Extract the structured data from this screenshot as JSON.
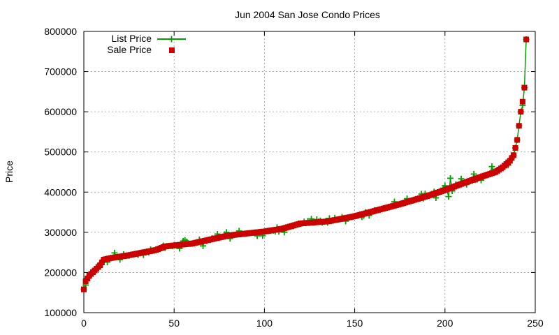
{
  "chart_data": {
    "type": "scatter",
    "title": "Jun 2004 San Jose Condo Prices",
    "xlabel": "",
    "ylabel": "Price",
    "xlim": [
      0,
      250
    ],
    "ylim": [
      100000,
      800000
    ],
    "x_ticks": [
      0,
      50,
      100,
      150,
      200,
      250
    ],
    "y_ticks": [
      100000,
      200000,
      300000,
      400000,
      500000,
      600000,
      700000,
      800000
    ],
    "grid": true,
    "legend_position": "top-left",
    "sale_control_points": [
      [
        0,
        158000
      ],
      [
        1,
        178000
      ],
      [
        3,
        192000
      ],
      [
        6,
        205000
      ],
      [
        9,
        218000
      ],
      [
        11,
        232000
      ],
      [
        15,
        236000
      ],
      [
        25,
        243000
      ],
      [
        40,
        256000
      ],
      [
        45,
        265000
      ],
      [
        60,
        272000
      ],
      [
        80,
        292000
      ],
      [
        100,
        302000
      ],
      [
        110,
        309000
      ],
      [
        120,
        322000
      ],
      [
        135,
        327000
      ],
      [
        150,
        340000
      ],
      [
        160,
        352000
      ],
      [
        175,
        370000
      ],
      [
        190,
        390000
      ],
      [
        200,
        405000
      ],
      [
        210,
        422000
      ],
      [
        220,
        438000
      ],
      [
        228,
        450000
      ],
      [
        232,
        462000
      ],
      [
        236,
        478000
      ],
      [
        238,
        492000
      ],
      [
        239,
        510000
      ],
      [
        240,
        530000
      ],
      [
        241,
        565000
      ],
      [
        242,
        600000
      ],
      [
        243,
        625000
      ],
      [
        244,
        660000
      ],
      [
        245,
        780000
      ]
    ],
    "series": [
      {
        "name": "List Price",
        "color": "#00a000",
        "style": "line+cross",
        "deviation_amplitude": 12000
      },
      {
        "name": "Sale Price",
        "color": "#cc0000",
        "style": "square"
      }
    ]
  }
}
